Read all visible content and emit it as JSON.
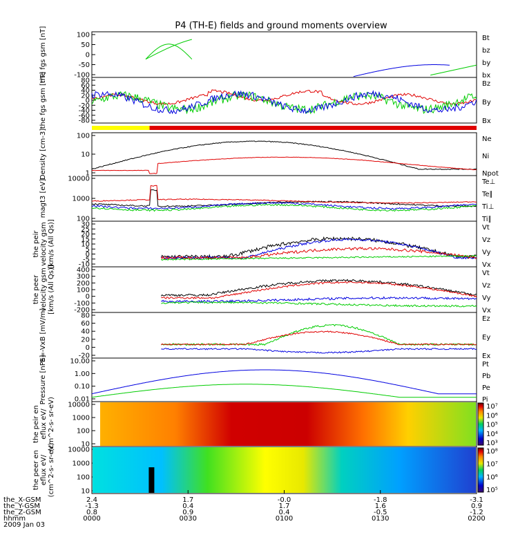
{
  "title": "P4 (TH-E) fields and ground moments overview",
  "colors": {
    "black": "#000000",
    "red": "#e00000",
    "green": "#00cc00",
    "blue": "#0000e0",
    "yellow": "#ffff00"
  },
  "chart_data": [
    {
      "type": "line",
      "ylabel": "the fgs gsm [nT]",
      "yticks": [
        "100",
        "50",
        "0",
        "-50",
        "-100"
      ],
      "legend": [
        "Bt",
        "bz",
        "by",
        "bx"
      ],
      "legend_colors": [
        "#000000",
        "#e00000",
        "#00cc00",
        "#0000e0"
      ]
    },
    {
      "type": "line",
      "ylabel": "the fgs gsm [nT]",
      "yticks": [
        "80",
        "60",
        "40",
        "20",
        "0",
        "-20",
        "-40",
        "-60",
        "-80"
      ],
      "legend": [
        "Bz",
        "By",
        "Bx"
      ],
      "legend_colors": [
        "#e00000",
        "#00cc00",
        "#0000e0"
      ]
    },
    {
      "type": "bar",
      "note_colors": [
        "#ffff00",
        "#e00000"
      ]
    },
    {
      "type": "line",
      "ylabel": "Density [cm-3]",
      "yticks": [
        "100",
        "10",
        "1"
      ],
      "legend": [
        "Ne",
        "Ni",
        "Npot"
      ],
      "legend_colors": [
        "#e00000",
        "#000000",
        "#0000e0"
      ]
    },
    {
      "type": "line",
      "ylabel": "magt3 [eV]",
      "yticks": [
        "10000",
        "1000",
        "100"
      ],
      "legend": [
        "Te⊥",
        "Te∥",
        "Ti⊥",
        "Ti∥"
      ],
      "legend_colors": [
        "#e00000",
        "#000000",
        "#0000e0",
        "#00cc00"
      ]
    },
    {
      "type": "line",
      "ylabel": "the peir velocity gsm [km/s (All Qs)]",
      "yticks": [
        "30",
        "25",
        "20",
        "15",
        "10",
        "5",
        "0",
        "-5",
        "-10"
      ],
      "legend": [
        "Vt",
        "Vz",
        "Vy",
        "Vx"
      ],
      "legend_colors": [
        "#000000",
        "#e00000",
        "#00cc00",
        "#0000e0"
      ]
    },
    {
      "type": "line",
      "ylabel": "the peer velocity gsm [km/s (All Qs)]",
      "yticks": [
        "400",
        "300",
        "200",
        "100",
        "0",
        "-100",
        "-200"
      ],
      "legend": [
        "Vt",
        "Vz",
        "Vy",
        "Vx"
      ],
      "legend_colors": [
        "#000000",
        "#e00000",
        "#00cc00",
        "#0000e0"
      ]
    },
    {
      "type": "line",
      "ylabel": "E=-VxB [mV/m]",
      "yticks": [
        "80",
        "60",
        "40",
        "20",
        "0",
        "-20"
      ],
      "legend": [
        "Ez",
        "Ey",
        "Ex"
      ],
      "legend_colors": [
        "#e00000",
        "#00cc00",
        "#0000e0"
      ]
    },
    {
      "type": "line",
      "ylabel": "Pressure [nPa]",
      "yticks": [
        "10.00",
        "1.00",
        "0.10",
        "0.01"
      ],
      "legend": [
        "Pt",
        "Pb",
        "Pe",
        "Pi"
      ],
      "legend_colors": [
        "#000000",
        "#e00000",
        "#00cc00",
        "#0000e0"
      ]
    },
    {
      "type": "heatmap",
      "ylabel": "the peir en eflux eV/ (cm^2-s- sr-eV)",
      "yticks": [
        "10000",
        "1000",
        "100",
        "10"
      ],
      "colorbar": [
        "10⁷",
        "10⁶",
        "10⁵",
        "10⁴",
        "10³"
      ]
    },
    {
      "type": "heatmap",
      "ylabel": "the peer en eflux eV/ (cm^2-s- sr-eV)",
      "yticks": [
        "10000",
        "1000",
        "100",
        "10"
      ],
      "colorbar": [
        "10⁸",
        "10⁷",
        "10⁶",
        "10⁵"
      ]
    }
  ],
  "xaxis": {
    "rows": [
      {
        "label": "the_X-GSM",
        "values": [
          "2.4",
          "1.7",
          "-0.0",
          "-1.8",
          "-3.1"
        ]
      },
      {
        "label": "the_Y-GSM",
        "values": [
          "-1.3",
          "0.4",
          "1.7",
          "1.6",
          "0.9"
        ]
      },
      {
        "label": "the_Z-GSM",
        "values": [
          "0.8",
          "0.9",
          "0.4",
          "-0.5",
          "-1.2"
        ]
      },
      {
        "label": "hhmm",
        "values": [
          "0000",
          "0030",
          "0100",
          "0130",
          "0200"
        ]
      }
    ],
    "date": "2009 Jan 03"
  }
}
